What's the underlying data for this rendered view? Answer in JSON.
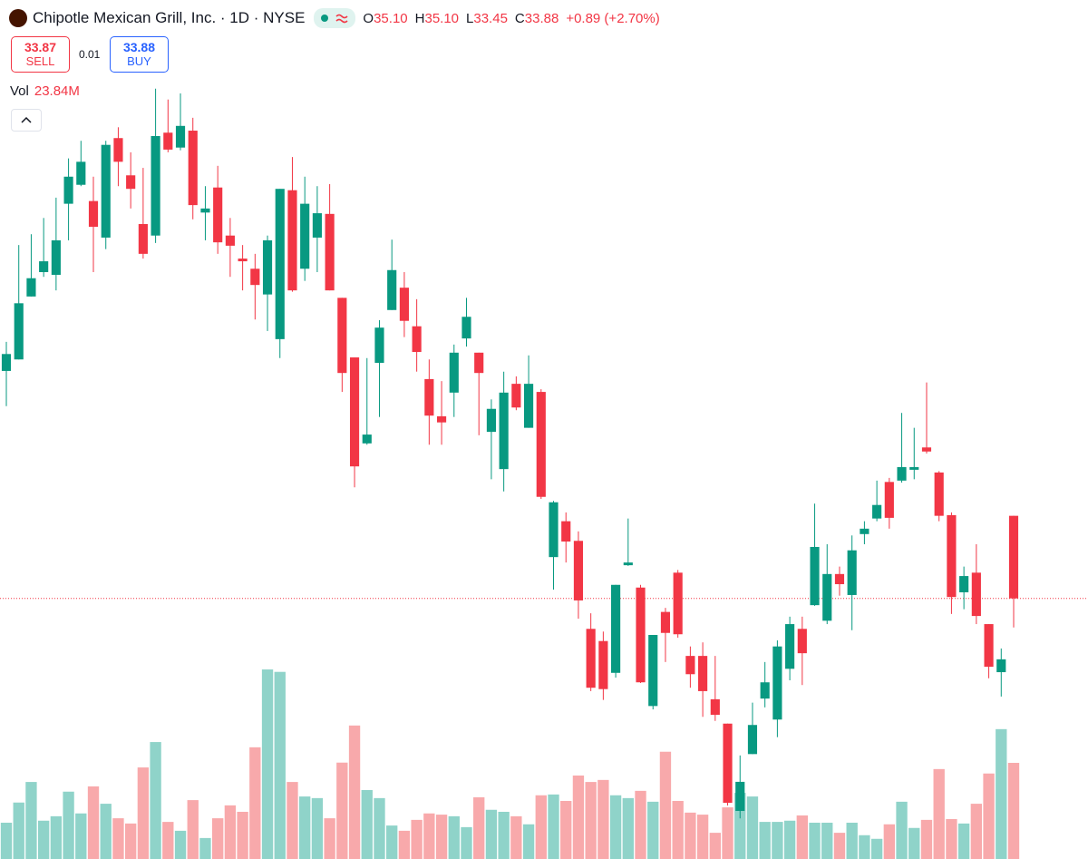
{
  "chart_data": {
    "type": "candlestick",
    "title": "Chipotle Mexican Grill, Inc. · 1D · NYSE",
    "legend_values": [
      {
        "label": "O",
        "value": "35.10"
      },
      {
        "label": "H",
        "value": "35.10"
      },
      {
        "label": "L",
        "value": "33.45"
      },
      {
        "label": "C",
        "value": "33.88"
      }
    ],
    "change": "+0.89 (+2.70%)",
    "sell": {
      "price": "33.87",
      "label": "SELL"
    },
    "spread": "0.01",
    "buy": {
      "price": "33.88",
      "label": "BUY"
    },
    "volume_label": "Vol",
    "volume_value": "23.84M",
    "up_color": "#089981",
    "down_color": "#f23645",
    "volume_up_color": "#8fd3c9",
    "volume_down_color": "#f8a9ab",
    "last_price_line": true,
    "ylim": [
      30.03,
      42.72
    ],
    "y2lim": [
      0,
      213
    ],
    "open": [
      37.24,
      37.41,
      38.34,
      38.7,
      38.66,
      39.71,
      39.99,
      39.75,
      39.21,
      40.68,
      40.13,
      39.41,
      39.24,
      40.76,
      40.54,
      40.79,
      39.58,
      39.95,
      39.24,
      38.9,
      38.75,
      38.37,
      37.71,
      39.91,
      38.75,
      39.21,
      39.56,
      38.32,
      37.44,
      36.17,
      37.36,
      38.14,
      38.47,
      37.9,
      37.12,
      36.57,
      36.92,
      37.72,
      37.51,
      36.34,
      35.79,
      37.05,
      36.4,
      36.93,
      34.49,
      35.02,
      34.73,
      33.43,
      33.25,
      32.78,
      34.37,
      34.04,
      32.29,
      33.68,
      34.26,
      33.03,
      33.03,
      32.39,
      32.03,
      30.74,
      31.58,
      32.4,
      32.09,
      32.84,
      33.43,
      33.78,
      33.55,
      34.24,
      33.93,
      34.83,
      35.06,
      35.6,
      35.62,
      35.78,
      36.11,
      35.74,
      35.11,
      33.97,
      34.26,
      33.5,
      32.79,
      35.1
    ],
    "high": [
      37.67,
      39.1,
      39.26,
      39.5,
      39.8,
      40.38,
      40.64,
      40.11,
      40.64,
      40.84,
      40.47,
      40.24,
      41.41,
      41.25,
      41.34,
      40.98,
      39.97,
      40.27,
      39.5,
      39.1,
      38.97,
      39.24,
      39.93,
      40.4,
      40.11,
      39.97,
      40.0,
      38.32,
      37.44,
      37.43,
      37.99,
      39.18,
      38.7,
      38.3,
      37.41,
      37.09,
      37.63,
      38.32,
      37.51,
      36.82,
      37.23,
      37.16,
      37.47,
      36.97,
      35.32,
      35.15,
      34.87,
      33.66,
      33.39,
      34.08,
      35.06,
      34.08,
      33.34,
      33.74,
      34.3,
      33.17,
      33.23,
      33.03,
      32.03,
      31.56,
      32.34,
      32.94,
      33.26,
      33.61,
      33.61,
      35.28,
      34.68,
      34.35,
      34.81,
      35.02,
      35.62,
      35.66,
      36.62,
      36.4,
      37.07,
      35.76,
      35.15,
      34.35,
      34.68,
      33.5,
      33.14,
      35.1
    ],
    "low": [
      36.72,
      37.41,
      38.34,
      38.63,
      38.43,
      39.17,
      39.97,
      38.7,
      39.04,
      39.97,
      39.64,
      38.9,
      39.13,
      40.47,
      40.5,
      39.48,
      39.17,
      38.97,
      38.63,
      38.43,
      38.0,
      37.83,
      37.43,
      38.41,
      38.57,
      38.7,
      38.43,
      36.93,
      35.52,
      36.15,
      36.56,
      38.14,
      37.74,
      37.23,
      36.15,
      36.15,
      36.56,
      37.6,
      36.29,
      35.64,
      35.46,
      36.66,
      36.4,
      35.35,
      34.01,
      34.41,
      33.58,
      32.51,
      32.38,
      32.71,
      34.36,
      32.63,
      32.24,
      32.94,
      33.3,
      32.56,
      32.13,
      32.07,
      30.82,
      30.63,
      31.58,
      32.27,
      31.83,
      32.67,
      32.6,
      33.77,
      33.5,
      33.92,
      33.41,
      34.68,
      35.02,
      34.91,
      35.59,
      35.64,
      36.02,
      35.02,
      33.65,
      33.72,
      33.5,
      32.7,
      32.43,
      33.45
    ],
    "close": [
      37.49,
      38.24,
      38.61,
      38.86,
      39.17,
      40.11,
      40.33,
      39.37,
      40.58,
      40.33,
      39.93,
      38.97,
      40.71,
      40.51,
      40.86,
      39.69,
      39.64,
      39.14,
      39.09,
      38.86,
      38.51,
      39.17,
      39.93,
      38.43,
      39.71,
      39.57,
      38.43,
      37.21,
      35.83,
      36.3,
      37.88,
      38.73,
      37.98,
      37.52,
      36.58,
      36.48,
      37.51,
      38.04,
      37.21,
      36.68,
      36.92,
      36.7,
      37.05,
      35.38,
      35.3,
      34.72,
      33.85,
      32.56,
      32.54,
      34.08,
      34.41,
      32.64,
      33.34,
      33.37,
      33.35,
      32.76,
      32.51,
      32.16,
      30.86,
      31.17,
      32.01,
      32.64,
      33.17,
      33.5,
      33.07,
      34.64,
      34.24,
      34.09,
      34.59,
      34.91,
      35.26,
      35.07,
      35.82,
      35.82,
      36.05,
      35.1,
      33.9,
      34.21,
      33.62,
      32.87,
      32.98,
      33.88
    ],
    "volume": [
      9.0,
      14.0,
      19.1,
      9.5,
      10.6,
      16.7,
      11.3,
      18.0,
      13.7,
      10.1,
      8.8,
      22.7,
      29.0,
      9.2,
      7.0,
      14.6,
      5.2,
      10.1,
      13.3,
      11.7,
      27.7,
      47.0,
      46.4,
      19.1,
      15.5,
      15.1,
      10.1,
      23.9,
      33.1,
      17.1,
      15.1,
      8.3,
      7.0,
      9.7,
      11.3,
      11.0,
      10.6,
      7.9,
      15.3,
      12.2,
      11.7,
      10.6,
      8.6,
      15.8,
      16.0,
      14.4,
      20.7,
      19.1,
      19.6,
      15.8,
      15.1,
      16.9,
      14.2,
      26.6,
      14.4,
      11.5,
      11.0,
      6.5,
      12.8,
      16.4,
      15.5,
      9.2,
      9.2,
      9.5,
      10.8,
      9.0,
      9.0,
      6.5,
      9.0,
      5.9,
      5.0,
      8.6,
      14.2,
      7.7,
      9.7,
      22.3,
      9.9,
      8.8,
      13.7,
      21.2,
      32.2,
      23.84
    ]
  }
}
